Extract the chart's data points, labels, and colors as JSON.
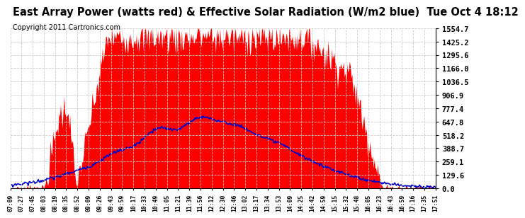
{
  "title": "East Array Power (watts red) & Effective Solar Radiation (W/m2 blue)  Tue Oct 4 18:12",
  "copyright": "Copyright 2011 Cartronics.com",
  "yticks": [
    0.0,
    129.6,
    259.1,
    388.7,
    518.2,
    647.8,
    777.4,
    906.9,
    1036.5,
    1166.0,
    1295.6,
    1425.2,
    1554.7
  ],
  "xtick_labels": [
    "07:09",
    "07:27",
    "07:45",
    "08:03",
    "08:19",
    "08:35",
    "08:52",
    "09:09",
    "09:26",
    "09:43",
    "09:59",
    "10:17",
    "10:33",
    "10:49",
    "11:05",
    "11:21",
    "11:39",
    "11:56",
    "12:12",
    "12:30",
    "12:46",
    "13:02",
    "13:17",
    "13:34",
    "13:53",
    "14:09",
    "14:25",
    "14:42",
    "14:59",
    "15:15",
    "15:32",
    "15:48",
    "16:05",
    "16:23",
    "16:43",
    "16:59",
    "17:16",
    "17:35",
    "17:51"
  ],
  "background_color": "#ffffff",
  "red_color": "#ff0000",
  "blue_color": "#0000cc",
  "grid_color": "#cccccc",
  "title_fontsize": 10.5,
  "copyright_fontsize": 7
}
